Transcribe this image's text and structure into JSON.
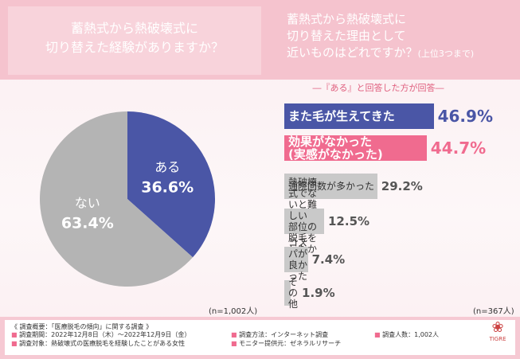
{
  "chart_data": [
    {
      "type": "pie",
      "title": [
        "蓄熱式から熱破壊式に",
        "切り替えた経験がありますか？"
      ],
      "categories": [
        "ある",
        "ない"
      ],
      "values": [
        36.6,
        63.4
      ],
      "value_labels": [
        "36.6%",
        "63.4%"
      ],
      "colors": [
        "#4a56a6",
        "#b4b4b4"
      ],
      "note": "(n=1,002人)"
    },
    {
      "type": "barh",
      "title": [
        "蓄熱式から熱破壊式に",
        "切り替えた理由として",
        "近いものはどれですか？"
      ],
      "subtitle": "(上位3つまで)",
      "annotation": "―『ある』と回答した方が回答―",
      "categories": [
        "また毛が生えてきた",
        "効果がなかった\n(実感がなかった)",
        "通院回数が多かった",
        "熱破壊式でないと難しい\n部位の脱毛をしたかった",
        "コスパが良かった",
        "その他"
      ],
      "values": [
        46.9,
        44.7,
        29.2,
        12.5,
        7.4,
        1.9
      ],
      "value_labels": [
        "46.9%",
        "44.7%",
        "29.2%",
        "12.5%",
        "7.4%",
        "1.9%"
      ],
      "colors": [
        "#4a56a6",
        "#f06b8f",
        "#c9c9c9",
        "#c9c9c9",
        "#c9c9c9",
        "#c9c9c9"
      ],
      "note": "(n=367人)"
    }
  ],
  "footer": {
    "heading": "《 調査概要：「医療脱毛の傾向」に関する調査 》",
    "items": [
      "調査期間：2022年12月8日（木）～2022年12月9日（金）",
      "調査対象：熱破壊式の医療脱毛を経験したことがある女性",
      "調査方法：インターネット調査",
      "モニター提供元：ゼネラルリサーチ",
      "調査人数：1,002人"
    ],
    "logo": "TIGRE"
  }
}
